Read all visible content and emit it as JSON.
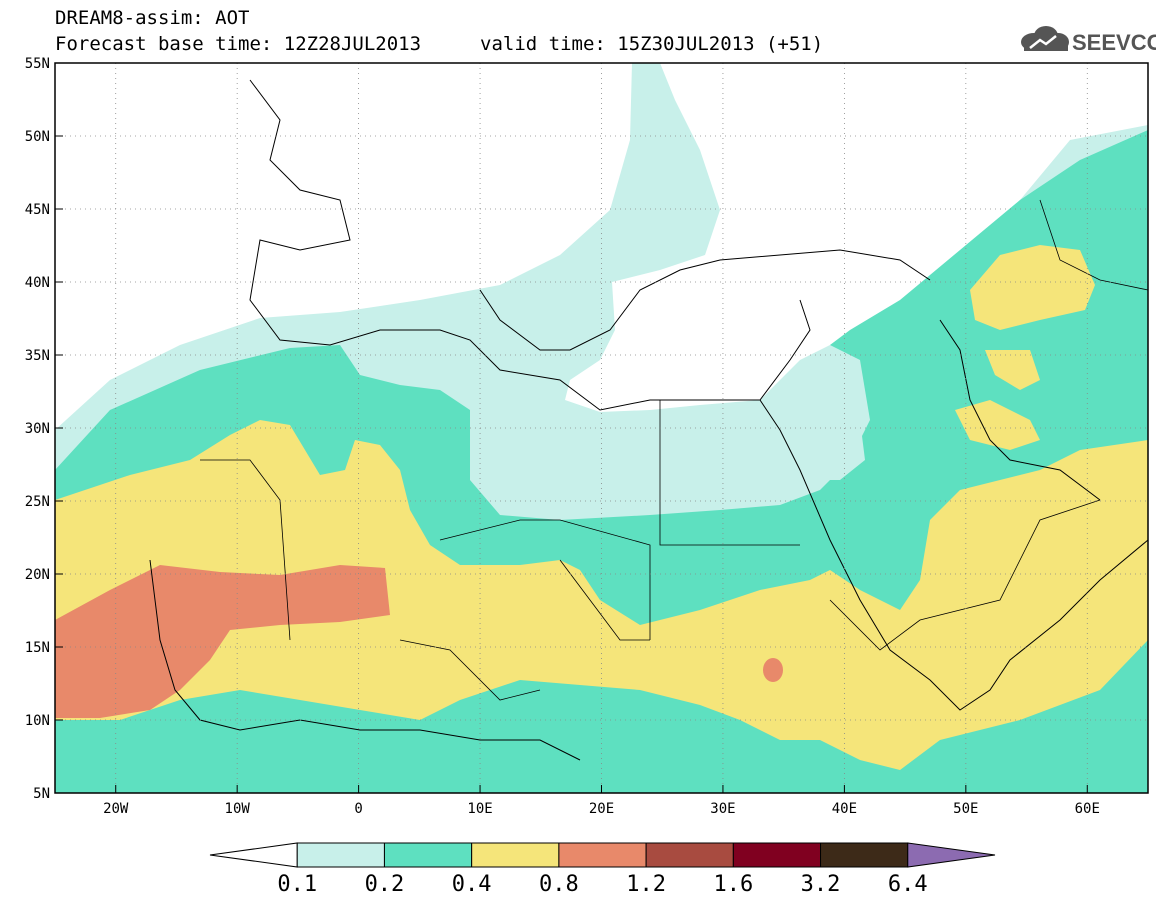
{
  "header": {
    "title": "DREAM8-assim: AOT",
    "base_time_text": "Forecast base time: 12Z28JUL2013",
    "valid_time_text": "valid time: 15Z30JUL2013 (+51)",
    "logo_text": "SEEVCCC"
  },
  "map": {
    "lat_labels": [
      "55N",
      "50N",
      "45N",
      "40N",
      "35N",
      "30N",
      "25N",
      "20N",
      "15N",
      "10N",
      "5N"
    ],
    "lon_labels": [
      "20W",
      "10W",
      "0",
      "10E",
      "20E",
      "30E",
      "40E",
      "50E",
      "60E"
    ]
  },
  "colorbar": {
    "labels": [
      "0.1",
      "0.2",
      "0.4",
      "0.8",
      "1.2",
      "1.6",
      "3.2",
      "6.4"
    ],
    "colors": [
      "#ffffff",
      "#c8f0ea",
      "#5ee0c0",
      "#f5e57a",
      "#e8896a",
      "#a84b40",
      "#800020",
      "#3d2a18",
      "#8c6bb1"
    ]
  },
  "colors": {
    "level1": "#c8f0ea",
    "level2": "#5ee0c0",
    "level3": "#f5e57a",
    "level4": "#e8896a"
  }
}
